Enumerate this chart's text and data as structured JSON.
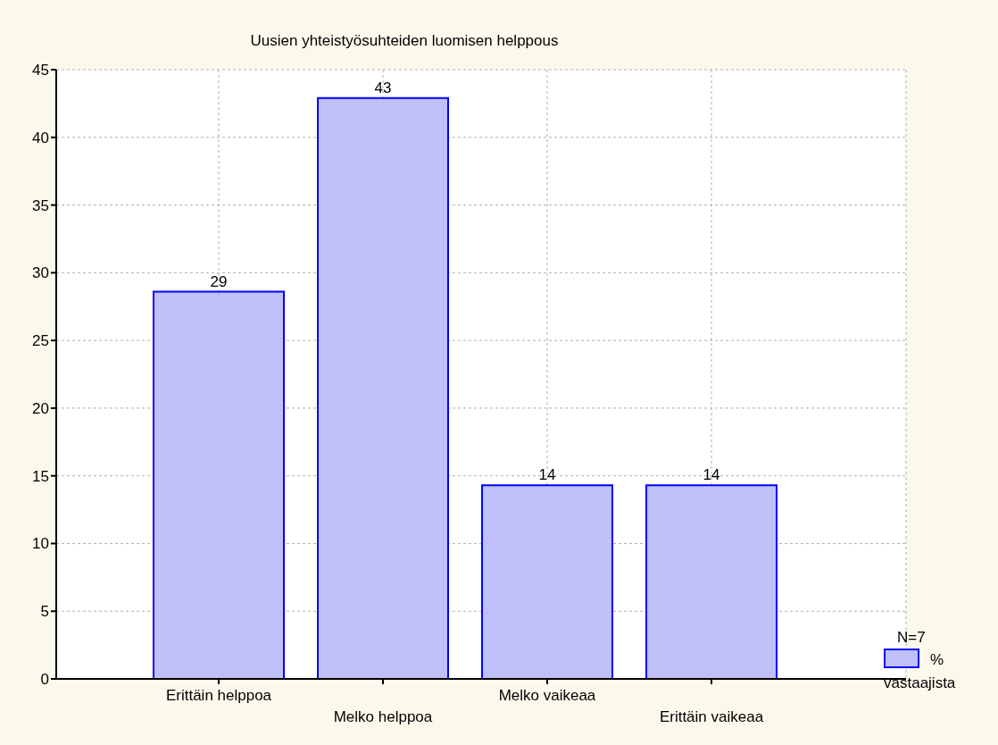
{
  "chart_data": {
    "type": "bar",
    "title": "Uusien yhteistyösuhteiden luomisen helppous",
    "categories": [
      "Erittäin helppoa",
      "Melko helppoa",
      "Melko vaikeaa",
      "Erittäin vaikeaa"
    ],
    "series": [
      {
        "name": "% vastaajista",
        "color": "#c0c0f8",
        "values": [
          28.6,
          42.9,
          14.3,
          14.3
        ],
        "value_labels": [
          "29",
          "43",
          "14",
          "14"
        ]
      }
    ],
    "ylim": [
      0,
      45
    ],
    "yticks": [
      0,
      5,
      10,
      15,
      20,
      25,
      30,
      35,
      40,
      45
    ],
    "grid": true,
    "legend": "bottom right",
    "annotations": [
      "N=7"
    ]
  }
}
